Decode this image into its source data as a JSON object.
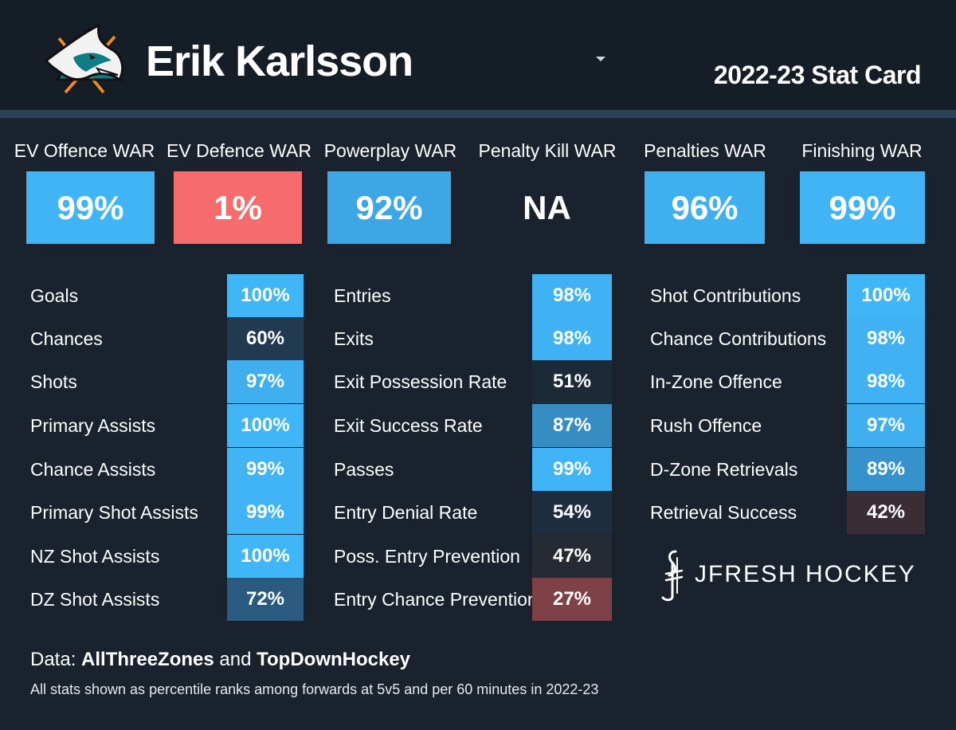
{
  "header": {
    "player_name": "Erik Karlsson",
    "card_title": "2022-23 Stat Card",
    "team_logo_icon": "shark-logo-icon",
    "dropdown_icon": "caret-down-icon"
  },
  "war": [
    {
      "label": "EV Offence WAR",
      "value": "99%",
      "color": "#40b4f5"
    },
    {
      "label": "EV Defence WAR",
      "value": "1%",
      "color": "#f66b6b"
    },
    {
      "label": "Powerplay WAR",
      "value": "92%",
      "color": "#3da6e4"
    },
    {
      "label": "Penalty Kill WAR",
      "value": "NA",
      "color": "transparent"
    },
    {
      "label": "Penalties WAR",
      "value": "96%",
      "color": "#3fb0ef"
    },
    {
      "label": "Finishing WAR",
      "value": "99%",
      "color": "#40b4f5"
    }
  ],
  "stats": {
    "col1": [
      {
        "label": "Goals",
        "value": "100%",
        "color": "#41b6f7"
      },
      {
        "label": "Chances",
        "value": "60%",
        "color": "#223a50"
      },
      {
        "label": "Shots",
        "value": "97%",
        "color": "#3faff0"
      },
      {
        "label": "Primary Assists",
        "value": "100%",
        "color": "#41b6f7"
      },
      {
        "label": "Chance Assists",
        "value": "99%",
        "color": "#40b4f5"
      },
      {
        "label": "Primary Shot Assists",
        "value": "99%",
        "color": "#40b4f5"
      },
      {
        "label": "NZ Shot Assists",
        "value": "100%",
        "color": "#41b6f7"
      },
      {
        "label": "DZ Shot Assists",
        "value": "72%",
        "color": "#2a5a80"
      }
    ],
    "col2": [
      {
        "label": "Entries",
        "value": "98%",
        "color": "#40b2f3"
      },
      {
        "label": "Exits",
        "value": "98%",
        "color": "#40b2f3"
      },
      {
        "label": "Exit Possession Rate",
        "value": "51%",
        "color": "#1c2937"
      },
      {
        "label": "Exit Success Rate",
        "value": "87%",
        "color": "#358dc4"
      },
      {
        "label": "Passes",
        "value": "99%",
        "color": "#40b4f5"
      },
      {
        "label": "Entry Denial Rate",
        "value": "54%",
        "color": "#1e2e3e"
      },
      {
        "label": "Poss. Entry Prevention",
        "value": "47%",
        "color": "#262a33"
      },
      {
        "label": "Entry Chance Prevention",
        "value": "27%",
        "color": "#7d4146"
      }
    ],
    "col3": [
      {
        "label": "Shot Contributions",
        "value": "100%",
        "color": "#41b6f7"
      },
      {
        "label": "Chance Contributions",
        "value": "98%",
        "color": "#40b2f3"
      },
      {
        "label": "In-Zone Offence",
        "value": "98%",
        "color": "#40b2f3"
      },
      {
        "label": "Rush Offence",
        "value": "97%",
        "color": "#3faff0"
      },
      {
        "label": "D-Zone Retrievals",
        "value": "89%",
        "color": "#3692cb"
      },
      {
        "label": "Retrieval Success",
        "value": "42%",
        "color": "#3a2d35"
      }
    ]
  },
  "brand": {
    "icon": "jfresh-hockey-logo-icon",
    "name": "JFRESH HOCKEY"
  },
  "footer": {
    "data_prefix": "Data: ",
    "source1": "AllThreeZones",
    "and_text": " and ",
    "source2": "TopDownHockey",
    "note": "All stats shown as percentile ranks among forwards at 5v5 and per 60 minutes in 2022-23"
  }
}
